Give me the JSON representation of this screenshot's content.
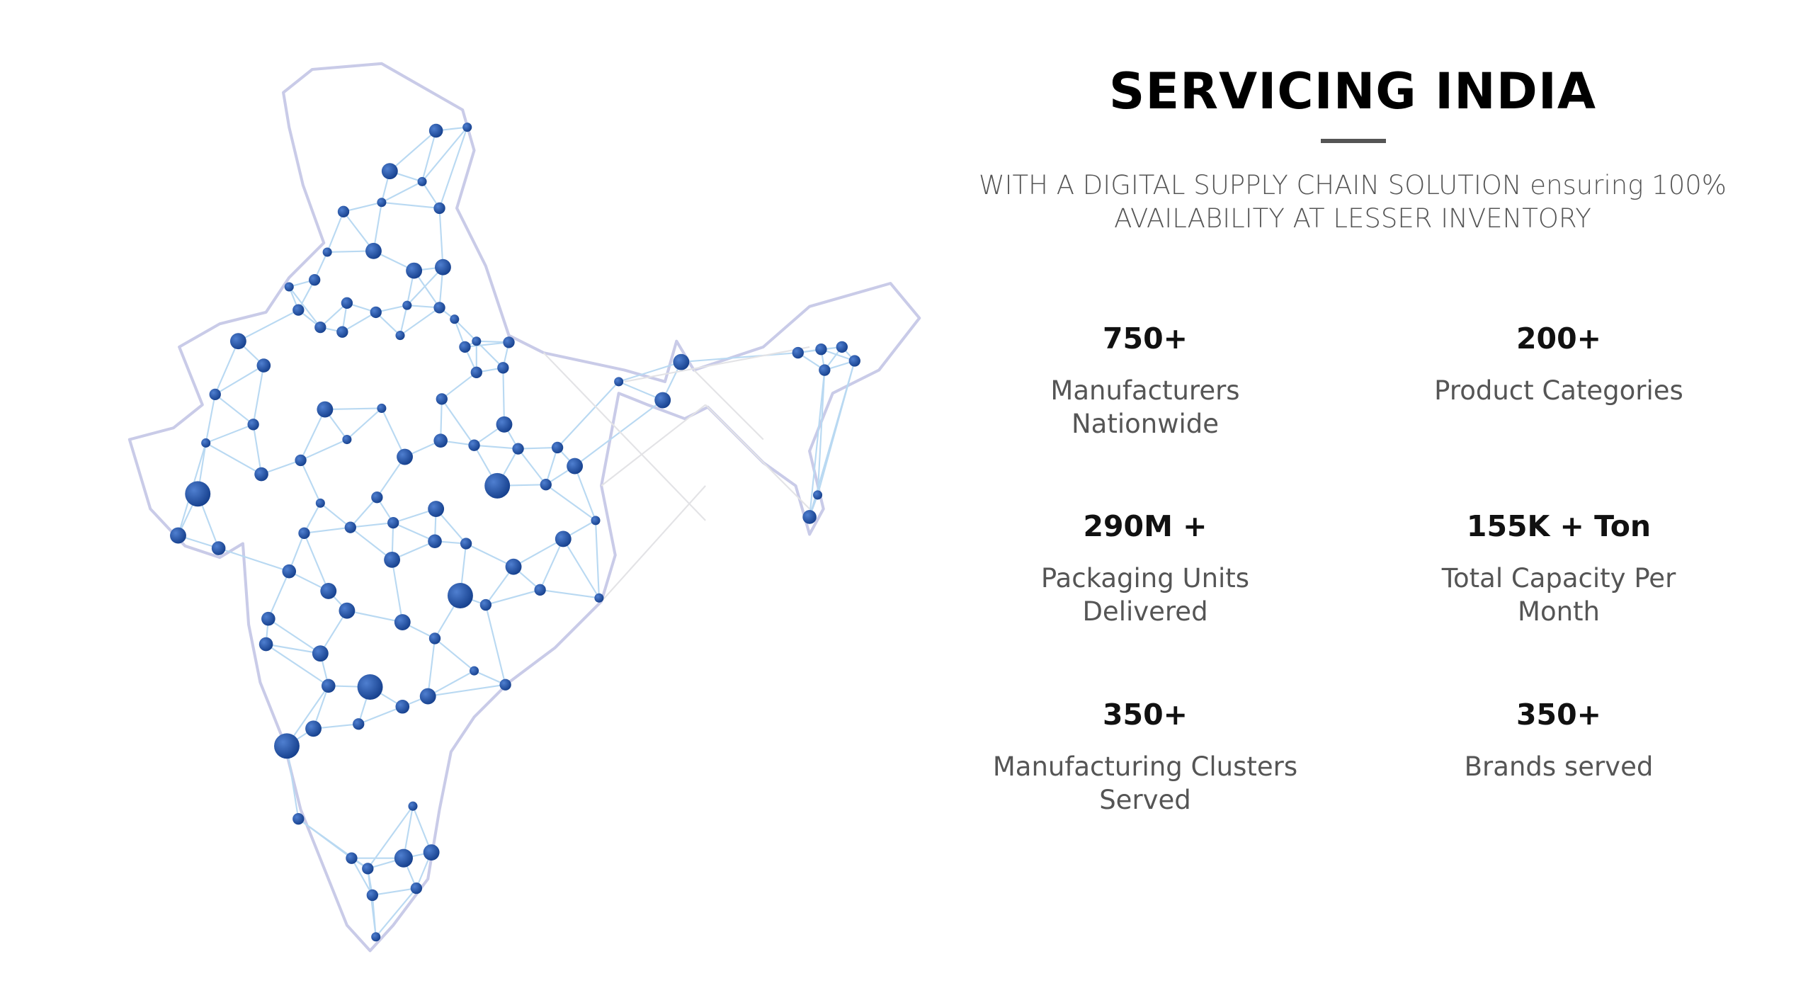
{
  "header": {
    "title": "SERVICING INDIA",
    "subtitle": "WITH A DIGITAL SUPPLY CHAIN SOLUTION ensuring 100% AVAILABILITY AT LESSER INVENTORY"
  },
  "stats": [
    {
      "value": "750+",
      "label": [
        "Manufacturers",
        "Nationwide"
      ]
    },
    {
      "value": "200+",
      "label": [
        "Product Categories"
      ]
    },
    {
      "value": "290M +",
      "label": [
        "Packaging Units",
        "Delivered"
      ]
    },
    {
      "value": "155K + Ton",
      "label": [
        "Total Capacity Per",
        "Month"
      ]
    },
    {
      "value": "350+",
      "label": [
        "Manufacturing Clusters",
        "Served"
      ]
    },
    {
      "value": "350+",
      "label": [
        "Brands served"
      ]
    }
  ]
}
